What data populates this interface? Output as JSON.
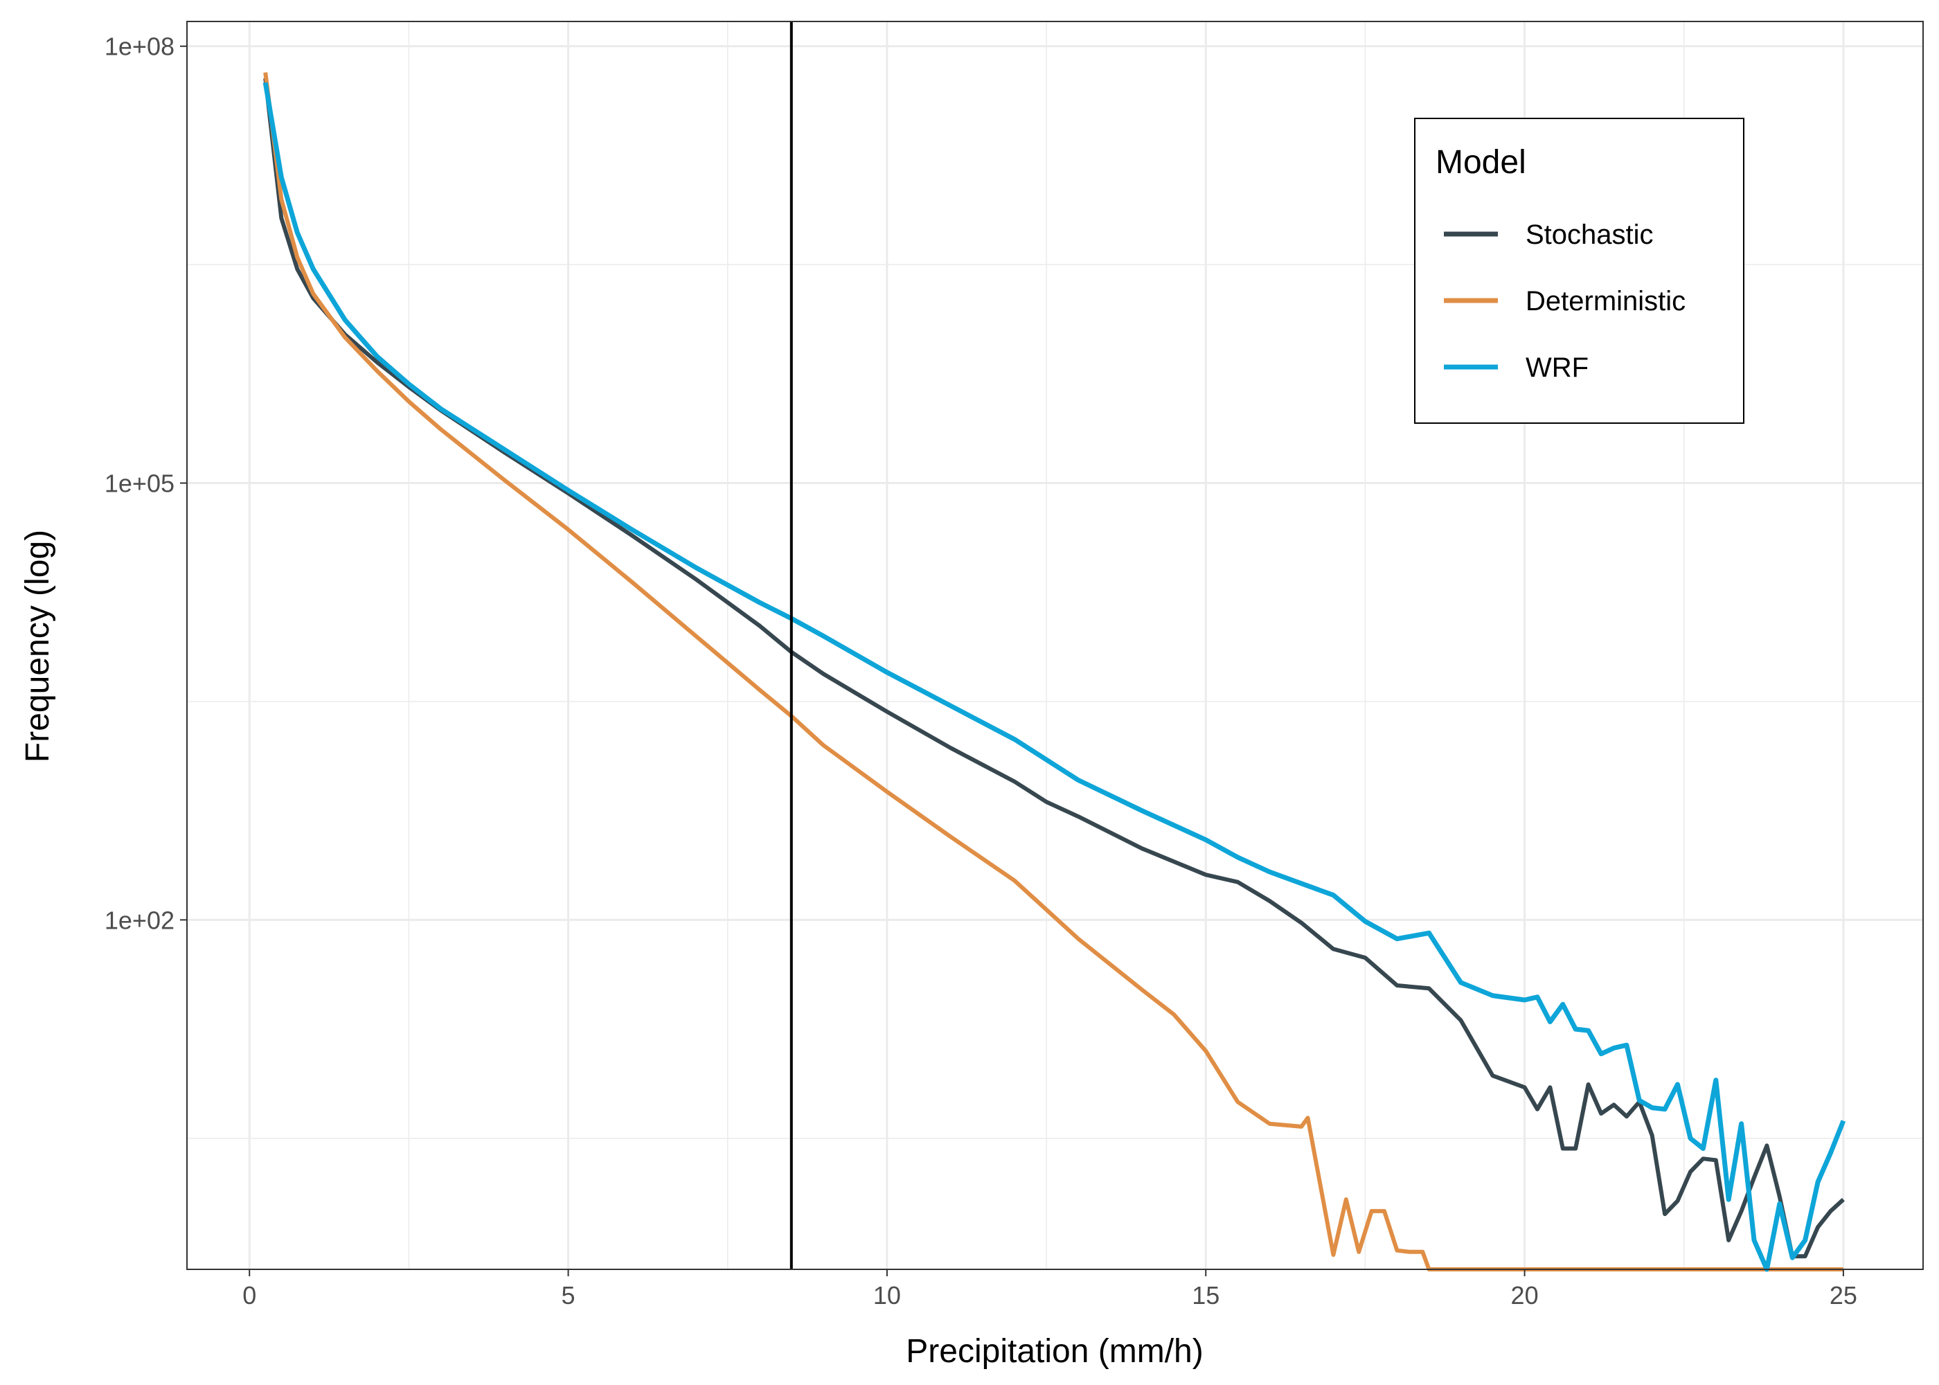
{
  "chart_data": {
    "type": "line",
    "xlabel": "Precipitation (mm/h)",
    "ylabel": "Frequency (log)",
    "xlim": [
      -0.98,
      26.25
    ],
    "ylim_log10": [
      -0.4,
      8.17
    ],
    "y_scale": "log10",
    "x_ticks": [
      {
        "value": 0,
        "label": "0"
      },
      {
        "value": 5,
        "label": "5"
      },
      {
        "value": 10,
        "label": "10"
      },
      {
        "value": 15,
        "label": "15"
      },
      {
        "value": 20,
        "label": "20"
      },
      {
        "value": 25,
        "label": "25"
      }
    ],
    "y_ticks": [
      {
        "value": 100,
        "label": "1e+02"
      },
      {
        "value": 100000,
        "label": "1e+05"
      },
      {
        "value": 100000000,
        "label": "1e+08"
      }
    ],
    "grid": true,
    "vertical_line_x": 8.5,
    "legend": {
      "title": "Model",
      "position": "top-right"
    },
    "series": [
      {
        "name": "Stochastic",
        "color": "#37474f",
        "points": [
          [
            0.25,
            7.78
          ],
          [
            0.5,
            6.82
          ],
          [
            0.75,
            6.47
          ],
          [
            1,
            6.27
          ],
          [
            1.5,
            6.02
          ],
          [
            2,
            5.83
          ],
          [
            2.5,
            5.66
          ],
          [
            3,
            5.5
          ],
          [
            4,
            5.21
          ],
          [
            5,
            4.93
          ],
          [
            6,
            4.64
          ],
          [
            7,
            4.34
          ],
          [
            8,
            4.02
          ],
          [
            8.5,
            3.84
          ],
          [
            9,
            3.69
          ],
          [
            10,
            3.43
          ],
          [
            11,
            3.18
          ],
          [
            12,
            2.95
          ],
          [
            12.5,
            2.81
          ],
          [
            13,
            2.71
          ],
          [
            14,
            2.49
          ],
          [
            15,
            2.31
          ],
          [
            15.5,
            2.26
          ],
          [
            16,
            2.13
          ],
          [
            16.5,
            1.98
          ],
          [
            17,
            1.8
          ],
          [
            17.5,
            1.74
          ],
          [
            18,
            1.55
          ],
          [
            18.5,
            1.53
          ],
          [
            19,
            1.31
          ],
          [
            19.5,
            0.93
          ],
          [
            20,
            0.85
          ],
          [
            20.2,
            0.7
          ],
          [
            20.4,
            0.85
          ],
          [
            20.6,
            0.43
          ],
          [
            20.8,
            0.43
          ],
          [
            21,
            0.87
          ],
          [
            21.2,
            0.67
          ],
          [
            21.4,
            0.73
          ],
          [
            21.6,
            0.65
          ],
          [
            21.8,
            0.75
          ],
          [
            22,
            0.52
          ],
          [
            22.2,
            -0.02
          ],
          [
            22.4,
            0.07
          ],
          [
            22.6,
            0.27
          ],
          [
            22.8,
            0.36
          ],
          [
            23,
            0.35
          ],
          [
            23.2,
            -0.2
          ],
          [
            23.4,
            0.0
          ],
          [
            23.6,
            0.23
          ],
          [
            23.8,
            0.45
          ],
          [
            24,
            0.1
          ],
          [
            24.2,
            -0.31
          ],
          [
            24.4,
            -0.31
          ],
          [
            24.6,
            -0.11
          ],
          [
            24.8,
            0.0
          ],
          [
            25,
            0.08
          ]
        ]
      },
      {
        "name": "Deterministic",
        "color": "#e08e45",
        "points": [
          [
            0.25,
            7.82
          ],
          [
            0.5,
            6.95
          ],
          [
            0.75,
            6.55
          ],
          [
            1,
            6.3
          ],
          [
            1.5,
            6.0
          ],
          [
            2,
            5.77
          ],
          [
            2.5,
            5.56
          ],
          [
            3,
            5.37
          ],
          [
            4,
            5.02
          ],
          [
            5,
            4.68
          ],
          [
            6,
            4.32
          ],
          [
            7,
            3.95
          ],
          [
            8,
            3.58
          ],
          [
            8.5,
            3.4
          ],
          [
            9,
            3.2
          ],
          [
            10,
            2.88
          ],
          [
            11,
            2.57
          ],
          [
            12,
            2.27
          ],
          [
            12.5,
            2.07
          ],
          [
            13,
            1.87
          ],
          [
            14,
            1.52
          ],
          [
            14.5,
            1.35
          ],
          [
            15,
            1.1
          ],
          [
            15.5,
            0.75
          ],
          [
            16,
            0.6
          ],
          [
            16.5,
            0.58
          ],
          [
            16.6,
            0.64
          ],
          [
            17,
            -0.3
          ],
          [
            17.2,
            0.08
          ],
          [
            17.4,
            -0.28
          ],
          [
            17.6,
            0.0
          ],
          [
            17.8,
            0.0
          ],
          [
            18,
            -0.27
          ],
          [
            18.2,
            -0.28
          ],
          [
            18.4,
            -0.28
          ],
          [
            18.5,
            -0.4
          ],
          [
            25,
            -0.4
          ]
        ]
      },
      {
        "name": "WRF",
        "color": "#0ea5d8",
        "points": [
          [
            0.25,
            7.75
          ],
          [
            0.5,
            7.1
          ],
          [
            0.75,
            6.72
          ],
          [
            1,
            6.47
          ],
          [
            1.5,
            6.12
          ],
          [
            2,
            5.87
          ],
          [
            2.5,
            5.68
          ],
          [
            3,
            5.51
          ],
          [
            4,
            5.23
          ],
          [
            5,
            4.95
          ],
          [
            6,
            4.68
          ],
          [
            7,
            4.42
          ],
          [
            8,
            4.18
          ],
          [
            8.5,
            4.07
          ],
          [
            9,
            3.95
          ],
          [
            10,
            3.7
          ],
          [
            11,
            3.47
          ],
          [
            12,
            3.24
          ],
          [
            12.5,
            3.1
          ],
          [
            13,
            2.96
          ],
          [
            14,
            2.75
          ],
          [
            15,
            2.55
          ],
          [
            15.5,
            2.43
          ],
          [
            16,
            2.33
          ],
          [
            16.5,
            2.25
          ],
          [
            17,
            2.17
          ],
          [
            17.5,
            1.99
          ],
          [
            18,
            1.87
          ],
          [
            18.5,
            1.91
          ],
          [
            19,
            1.57
          ],
          [
            19.5,
            1.48
          ],
          [
            20,
            1.45
          ],
          [
            20.2,
            1.47
          ],
          [
            20.4,
            1.3
          ],
          [
            20.6,
            1.42
          ],
          [
            20.8,
            1.25
          ],
          [
            21,
            1.24
          ],
          [
            21.2,
            1.08
          ],
          [
            21.4,
            1.12
          ],
          [
            21.6,
            1.14
          ],
          [
            21.8,
            0.76
          ],
          [
            22,
            0.71
          ],
          [
            22.2,
            0.7
          ],
          [
            22.4,
            0.87
          ],
          [
            22.6,
            0.5
          ],
          [
            22.8,
            0.43
          ],
          [
            23,
            0.9
          ],
          [
            23.2,
            0.08
          ],
          [
            23.4,
            0.6
          ],
          [
            23.6,
            -0.2
          ],
          [
            23.8,
            -0.4
          ],
          [
            24,
            0.05
          ],
          [
            24.2,
            -0.32
          ],
          [
            24.4,
            -0.2
          ],
          [
            24.6,
            0.2
          ],
          [
            24.8,
            0.4
          ],
          [
            25,
            0.62
          ]
        ]
      }
    ]
  }
}
